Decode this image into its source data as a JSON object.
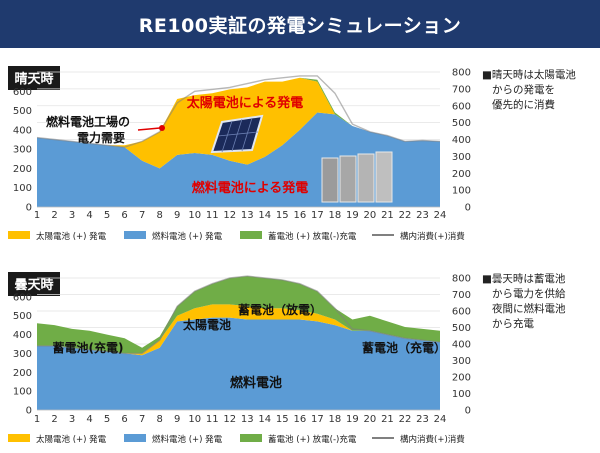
{
  "title": "RE100実証の発電シミュレーション",
  "colors": {
    "title_bg": "#1f3a6e",
    "solar": "#ffc000",
    "fuel": "#5b9bd5",
    "battery": "#70ad47",
    "consumption": "#808080",
    "panel_label_bg": "#1a1a1a"
  },
  "charts": [
    {
      "panel_label": "晴天時",
      "note_lines": [
        "■晴天時は太陽電池",
        "からの発電を",
        "優先的に消費"
      ],
      "annotations": {
        "solar": "太陽電池による発電",
        "fuel": "燃料電池による発電",
        "demand": [
          "燃料電池工場の",
          "電力需要"
        ]
      },
      "legend": [
        "太陽電池 (+) 発電",
        "燃料電池 (+) 発電",
        "蓄電池 (+) 放電(-)充電",
        "構内消費(+)消費"
      ]
    },
    {
      "panel_label": "曇天時",
      "note_lines": [
        "■曇天時は蓄電池",
        "から電力を供給",
        "夜間に燃料電池",
        "から充電"
      ],
      "annotations": {
        "battery_left": "蓄電池(充電)",
        "solar": "太陽電池",
        "battery_mid": "蓄電池（放電）",
        "battery_right": "蓄電池（充電）",
        "fuel": "燃料電池"
      },
      "legend": [
        "太陽電池 (+) 発電",
        "燃料電池 (+) 発電",
        "蓄電池 (+) 放電(-)充電",
        "構内消費(+)消費"
      ]
    }
  ],
  "chart_data": [
    {
      "type": "area",
      "x": [
        1,
        2,
        3,
        4,
        5,
        6,
        7,
        8,
        9,
        10,
        11,
        12,
        13,
        14,
        15,
        16,
        17,
        18,
        19,
        20,
        21,
        22,
        23,
        24
      ],
      "ylim_left": [
        0,
        700
      ],
      "yticks_left": [
        0,
        100,
        200,
        300,
        400,
        500,
        600
      ],
      "ylim_right": [
        0,
        800
      ],
      "yticks_right": [
        0,
        100,
        200,
        300,
        400,
        500,
        600,
        700,
        800
      ],
      "stacked": true,
      "series": [
        {
          "name": "燃料電池 (+) 発電",
          "color": "#5b9bd5",
          "values": [
            360,
            350,
            340,
            330,
            320,
            310,
            240,
            200,
            270,
            280,
            270,
            240,
            220,
            260,
            320,
            400,
            490,
            480,
            420,
            390,
            370,
            340,
            345,
            340
          ]
        },
        {
          "name": "太陽電池 (+) 発電",
          "color": "#ffc000",
          "values": [
            0,
            0,
            0,
            0,
            0,
            10,
            100,
            190,
            290,
            300,
            320,
            370,
            400,
            390,
            330,
            270,
            160,
            0,
            0,
            0,
            0,
            0,
            0,
            0
          ]
        },
        {
          "name": "蓄電池 (+) 放電(-)充電",
          "color": "#70ad47",
          "values": [
            0,
            0,
            0,
            0,
            0,
            0,
            0,
            0,
            0,
            0,
            0,
            0,
            0,
            0,
            0,
            0,
            10,
            10,
            0,
            0,
            0,
            0,
            0,
            0
          ]
        }
      ],
      "line": {
        "name": "構内消費(+)消費",
        "values": [
          360,
          350,
          340,
          330,
          320,
          310,
          340,
          390,
          540,
          600,
          610,
          620,
          640,
          660,
          670,
          680,
          680,
          590,
          430,
          390,
          370,
          340,
          345,
          340
        ]
      },
      "legend_position": "bottom"
    },
    {
      "type": "area",
      "x": [
        1,
        2,
        3,
        4,
        5,
        6,
        7,
        8,
        9,
        10,
        11,
        12,
        13,
        14,
        15,
        16,
        17,
        18,
        19,
        20,
        21,
        22,
        23,
        24
      ],
      "ylim_left": [
        0,
        700
      ],
      "yticks_left": [
        0,
        100,
        200,
        300,
        400,
        500,
        600
      ],
      "ylim_right": [
        0,
        800
      ],
      "yticks_right": [
        0,
        100,
        200,
        300,
        400,
        500,
        600,
        700,
        800
      ],
      "stacked": true,
      "series": [
        {
          "name": "燃料電池 (+) 発電",
          "color": "#5b9bd5",
          "values": [
            340,
            340,
            330,
            320,
            310,
            300,
            290,
            330,
            470,
            480,
            490,
            490,
            480,
            480,
            480,
            480,
            470,
            450,
            420,
            420,
            400,
            380,
            370,
            360
          ]
        },
        {
          "name": "太陽電池 (+) 発電",
          "color": "#ffc000",
          "values": [
            0,
            0,
            0,
            0,
            0,
            0,
            10,
            40,
            30,
            60,
            70,
            70,
            70,
            60,
            60,
            50,
            40,
            30,
            0,
            0,
            0,
            0,
            0,
            0
          ]
        },
        {
          "name": "蓄電池 (+) 放電(-)充電",
          "color": "#70ad47",
          "values": [
            120,
            110,
            100,
            100,
            90,
            80,
            30,
            20,
            50,
            90,
            110,
            140,
            160,
            160,
            150,
            140,
            120,
            60,
            60,
            80,
            70,
            60,
            60,
            60
          ]
        }
      ],
      "line": {
        "name": "構内消費(+)消費",
        "values": [
          340,
          340,
          330,
          320,
          310,
          300,
          300,
          370,
          550,
          630,
          670,
          700,
          710,
          700,
          690,
          670,
          630,
          540,
          430,
          420,
          400,
          380,
          370,
          360
        ]
      },
      "legend_position": "bottom"
    }
  ]
}
